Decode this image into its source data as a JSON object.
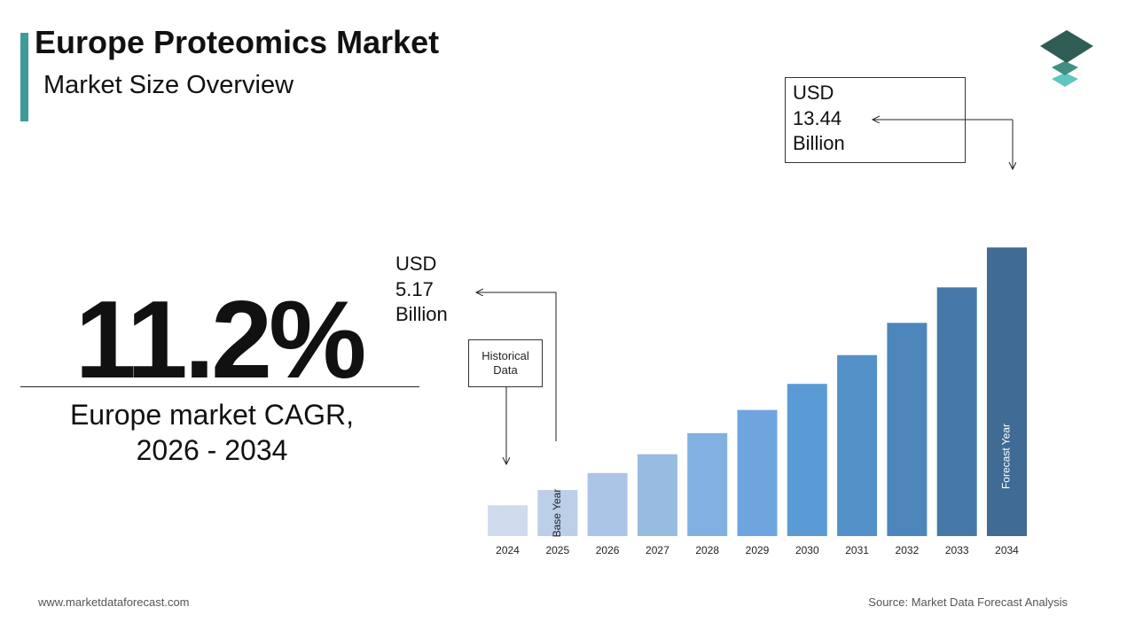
{
  "header": {
    "title": "Europe Proteomics Market",
    "subtitle": "Market Size Overview"
  },
  "highlight": {
    "cagr_value": "11.2%",
    "cagr_label_line1": "Europe market CAGR,",
    "cagr_label_line2": "2026 - 2034"
  },
  "callouts": {
    "start": {
      "line1": "USD",
      "line2": "5.17",
      "line3": "Billion"
    },
    "end": {
      "line1": "USD",
      "line2": "13.44",
      "line3": "Billion"
    },
    "historical_line1": "Historical",
    "historical_line2": "Data",
    "base_year_label": "Base Year",
    "forecast_year_label": "Forecast Year"
  },
  "footer": {
    "website": "www.marketdataforecast.com",
    "source": "Source: Market Data Forecast Analysis"
  },
  "colors": {
    "accent": "#3f9a9a",
    "bar_colors": [
      "#cfdcee",
      "#bccfe8",
      "#aac5e6",
      "#98bbe1",
      "#82b0e0",
      "#6ea5de",
      "#5b9bd5",
      "#5491c8",
      "#4d86ba",
      "#4679a8",
      "#3f6b94"
    ]
  },
  "chart_data": {
    "type": "bar",
    "categories": [
      "2024",
      "2025",
      "2026",
      "2027",
      "2028",
      "2029",
      "2030",
      "2031",
      "2032",
      "2033",
      "2034"
    ],
    "values": [
      4.65,
      5.17,
      5.75,
      6.39,
      7.11,
      7.9,
      8.79,
      9.77,
      10.87,
      12.08,
      13.44
    ],
    "title": "",
    "xlabel": "",
    "ylabel": "",
    "ylim": [
      0,
      14
    ],
    "grid": false,
    "legend": "none",
    "annotations": [
      "Historical Data",
      "Base Year",
      "Forecast Year",
      "USD 5.17 Billion",
      "USD 13.44 Billion"
    ]
  }
}
